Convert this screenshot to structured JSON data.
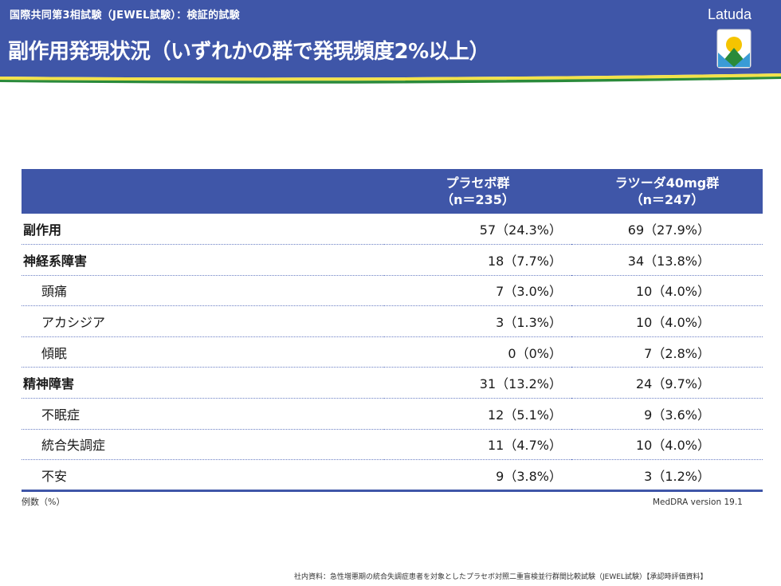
{
  "header": {
    "subtitle": "国際共同第3相試験（JEWEL試験）：検証的試験",
    "title": "副作用発現状況（いずれかの群で発現頻度2%以上）",
    "logo_text": "Latuda"
  },
  "colors": {
    "header_bg": "#3f56a8",
    "stripe_yellow": "#f3e24a",
    "stripe_green": "#2a8a3a",
    "dotted_line": "#6b7fc4"
  },
  "table": {
    "columns": [
      {
        "line1": "プラセボ群",
        "line2": "（n＝235）"
      },
      {
        "line1": "ラツーダ40mg群",
        "line2": "（n＝247）"
      }
    ],
    "rows": [
      {
        "label": "副作用",
        "style": "bold",
        "v1": "57（24.3%）",
        "v2": "69（27.9%）"
      },
      {
        "label": "神経系障害",
        "style": "bold",
        "v1": "18（7.7%）",
        "v2": "34（13.8%）"
      },
      {
        "label": "頭痛",
        "style": "indent",
        "v1": "7（3.0%）",
        "v2": "10（4.0%）"
      },
      {
        "label": "アカシジア",
        "style": "indent",
        "v1": "3（1.3%）",
        "v2": "10（4.0%）"
      },
      {
        "label": "傾眠",
        "style": "indent",
        "v1": "0（0%）",
        "v2": "7（2.8%）"
      },
      {
        "label": "精神障害",
        "style": "bold",
        "v1": "31（13.2%）",
        "v2": "24（9.7%）"
      },
      {
        "label": "不眠症",
        "style": "indent",
        "v1": "12（5.1%）",
        "v2": "9（3.6%）"
      },
      {
        "label": "統合失調症",
        "style": "indent",
        "v1": "11（4.7%）",
        "v2": "10（4.0%）"
      },
      {
        "label": "不安",
        "style": "indent",
        "v1": "9（3.8%）",
        "v2": "3（1.2%）"
      }
    ]
  },
  "footnotes": {
    "left": "例数（%）",
    "right": "MedDRA version 19.1",
    "source": "社内資料：急性増悪期の統合失調症患者を対象としたプラセボ対照二重盲検並行群間比較試験（JEWEL試験）【承認時評価資料】"
  }
}
